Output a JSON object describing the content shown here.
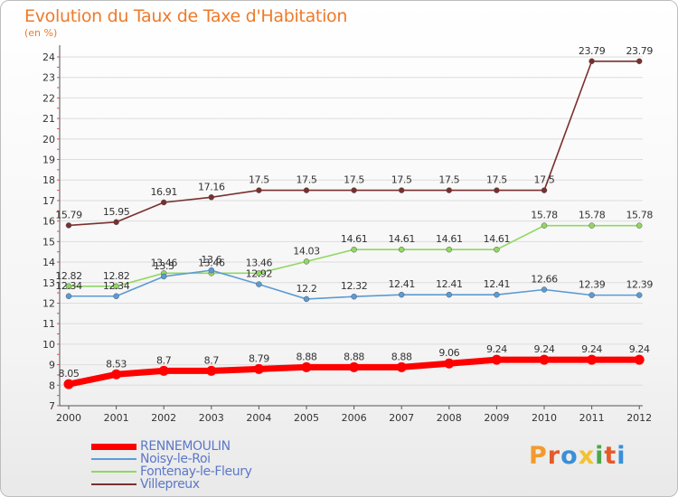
{
  "colors": {
    "title": "#ee7a2a",
    "legend_text": "#5b78c8",
    "axis": "#555555",
    "grid": "#dcdcdc"
  },
  "chart_data": {
    "type": "line",
    "title": "Evolution du Taux de Taxe d'Habitation",
    "subtitle": "(en %)",
    "xlabel": "",
    "ylabel": "(en %)",
    "ylim": [
      7,
      24
    ],
    "y_ticks": [
      7,
      8,
      9,
      10,
      11,
      12,
      13,
      14,
      15,
      16,
      17,
      18,
      19,
      20,
      21,
      22,
      23,
      24
    ],
    "x": [
      "2000",
      "2001",
      "2002",
      "2003",
      "2004",
      "2005",
      "2006",
      "2007",
      "2008",
      "2009",
      "2010",
      "2011",
      "2012"
    ],
    "series": [
      {
        "name": "RENNEMOULIN",
        "color": "#ff0000",
        "values": [
          8.05,
          8.53,
          8.7,
          8.7,
          8.79,
          8.88,
          8.88,
          8.88,
          9.06,
          9.24,
          9.24,
          9.24,
          9.24
        ],
        "labels": [
          "8.05",
          "8.53",
          "8.7",
          "8.7",
          "8.79",
          "8.88",
          "8.88",
          "8.88",
          "9.06",
          "9.24",
          "9.24",
          "9.24",
          "9.24"
        ]
      },
      {
        "name": "Noisy-le-Roi",
        "color": "#5b9bd5",
        "values": [
          12.34,
          12.34,
          13.3,
          13.6,
          12.92,
          12.2,
          12.32,
          12.41,
          12.41,
          12.41,
          12.66,
          12.39,
          12.39
        ],
        "labels": [
          "12.34",
          "12.34",
          "13.3",
          "13.6",
          "12.92",
          "12.2",
          "12.32",
          "12.41",
          "12.41",
          "12.41",
          "12.66",
          "12.39",
          "12.39"
        ]
      },
      {
        "name": "Fontenay-le-Fleury",
        "color": "#90d860",
        "values": [
          12.82,
          12.82,
          13.46,
          13.46,
          13.46,
          14.03,
          14.61,
          14.61,
          14.61,
          14.61,
          15.78,
          15.78,
          15.78
        ],
        "labels": [
          "12.82",
          "12.82",
          "13.46",
          "13.46",
          "13.46",
          "14.03",
          "14.61",
          "14.61",
          "14.61",
          "14.61",
          "15.78",
          "15.78",
          "15.78"
        ]
      },
      {
        "name": "Villepreux",
        "color": "#7a2f2f",
        "values": [
          15.79,
          15.95,
          16.91,
          17.16,
          17.5,
          17.5,
          17.5,
          17.5,
          17.5,
          17.5,
          17.5,
          23.79,
          23.79
        ],
        "labels": [
          "15.79",
          "15.95",
          "16.91",
          "17.16",
          "17.5",
          "17.5",
          "17.5",
          "17.5",
          "17.5",
          "17.5",
          "17.5",
          "23.79",
          "23.79"
        ]
      }
    ],
    "legend": {
      "position": "bottom-left",
      "entries": [
        "RENNEMOULIN",
        "Noisy-le-Roi",
        "Fontenay-le-Fleury",
        "Villepreux"
      ]
    }
  },
  "brand": {
    "letters": [
      "P",
      "r",
      "o",
      "x",
      "i",
      "t",
      "i"
    ],
    "colors": [
      "#f29a2e",
      "#e45a2a",
      "#3a8fd8",
      "#f2c230",
      "#4aa84a",
      "#e45a2a",
      "#3a8fd8"
    ]
  }
}
